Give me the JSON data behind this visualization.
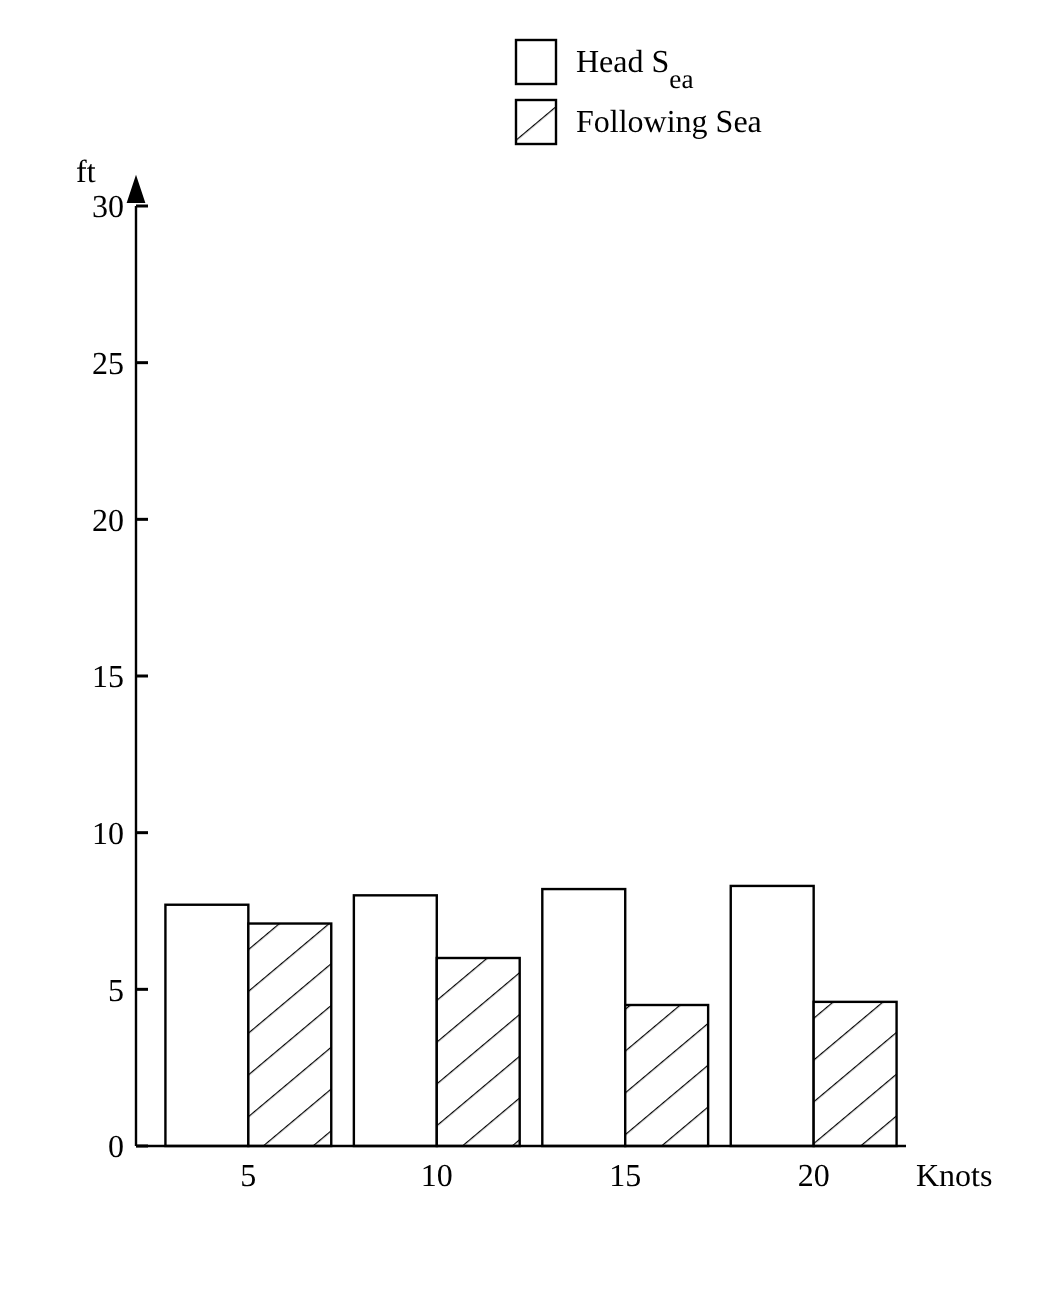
{
  "chart_data": {
    "type": "bar",
    "xlabel": "Knots",
    "ylabel": "ft",
    "categories": [
      "5",
      "10",
      "15",
      "20"
    ],
    "series": [
      {
        "name": "Head S$_{ea}$",
        "color": "#ffffff",
        "values": [
          7.7,
          8.0,
          8.2,
          8.3
        ]
      },
      {
        "name": "Following Sea",
        "color": "#000000",
        "values": [
          7.1,
          6.0,
          4.5,
          4.6
        ]
      }
    ],
    "ylim": [
      0,
      30
    ],
    "yticks": [
      0,
      5,
      10,
      15,
      20,
      25,
      30
    ],
    "grid": false,
    "legend": "top right"
  }
}
